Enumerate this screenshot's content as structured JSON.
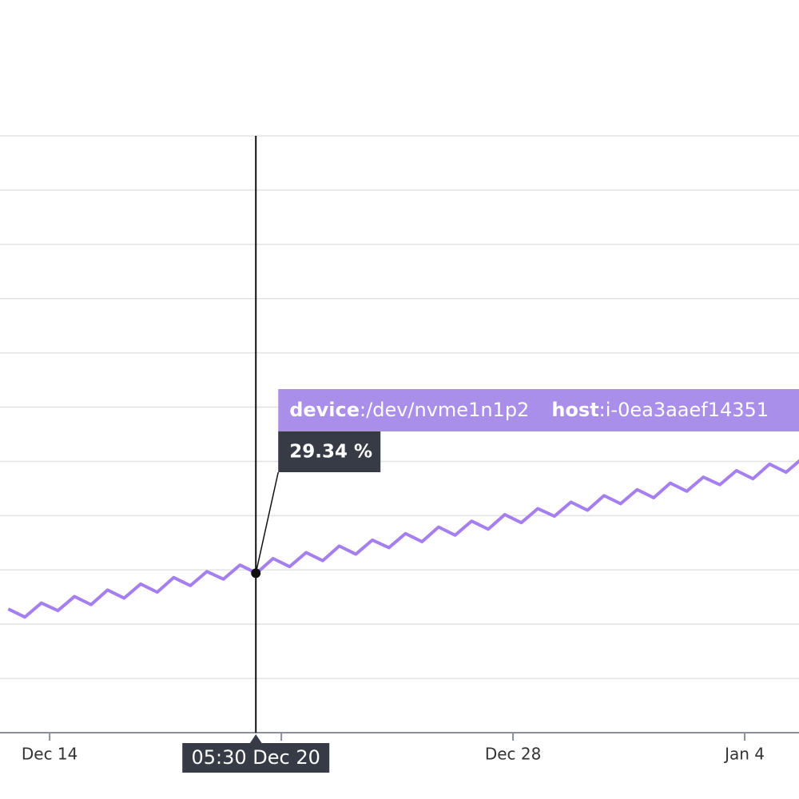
{
  "chart_data": {
    "type": "line",
    "series": [
      {
        "color": "#a57ff0",
        "x": [
          -1.25,
          -0.75,
          -0.25,
          0.25,
          0.75,
          1.25,
          1.75,
          2.25,
          2.75,
          3.25,
          3.75,
          4.25,
          4.75,
          5.25,
          5.75,
          6.25,
          6.75,
          7.25,
          7.75,
          8.25,
          8.75,
          9.25,
          9.75,
          10.25,
          10.75,
          11.25,
          11.75,
          12.25,
          12.75,
          13.25,
          13.75,
          14.25,
          14.75,
          15.25,
          15.75,
          16.25,
          16.75,
          17.25,
          17.75,
          18.25,
          18.75,
          19.25,
          19.75,
          20.25,
          20.75,
          21.25,
          21.75,
          22.25,
          22.75
        ],
        "values": [
          28.68,
          28.53,
          28.79,
          28.65,
          28.91,
          28.76,
          29.03,
          28.88,
          29.14,
          28.99,
          29.26,
          29.11,
          29.37,
          29.23,
          29.49,
          29.34,
          29.61,
          29.46,
          29.72,
          29.57,
          29.84,
          29.69,
          29.95,
          29.81,
          30.07,
          29.92,
          30.19,
          30.04,
          30.3,
          30.15,
          30.42,
          30.27,
          30.53,
          30.39,
          30.65,
          30.5,
          30.77,
          30.62,
          30.88,
          30.73,
          31.0,
          30.85,
          31.11,
          30.97,
          31.23,
          31.08,
          31.35,
          31.2,
          31.46
        ]
      }
    ],
    "xlim": [
      -1.5,
      22.64
    ],
    "xticks": [
      {
        "value": 0,
        "label": "Dec 14"
      },
      {
        "value": 7,
        "label": null
      },
      {
        "value": 14,
        "label": "Dec 28"
      },
      {
        "value": 21,
        "label": "Jan 4"
      }
    ],
    "ylim": [
      26.4,
      37.4
    ],
    "yticks": [
      26.4,
      27.4,
      28.4,
      29.4,
      30.4,
      31.4,
      32.4,
      33.4,
      34.4,
      35.4,
      36.4,
      37.4
    ],
    "grid": true,
    "tooltip": {
      "x": 6.23,
      "value": 29.34,
      "value_label": "29.34 %",
      "time_label": "05:30 Dec 20",
      "device_key": "device",
      "device_value": ":/dev/nvme1n1p2",
      "host_key": "host",
      "host_value": ":i-0ea3aaef14351"
    }
  }
}
